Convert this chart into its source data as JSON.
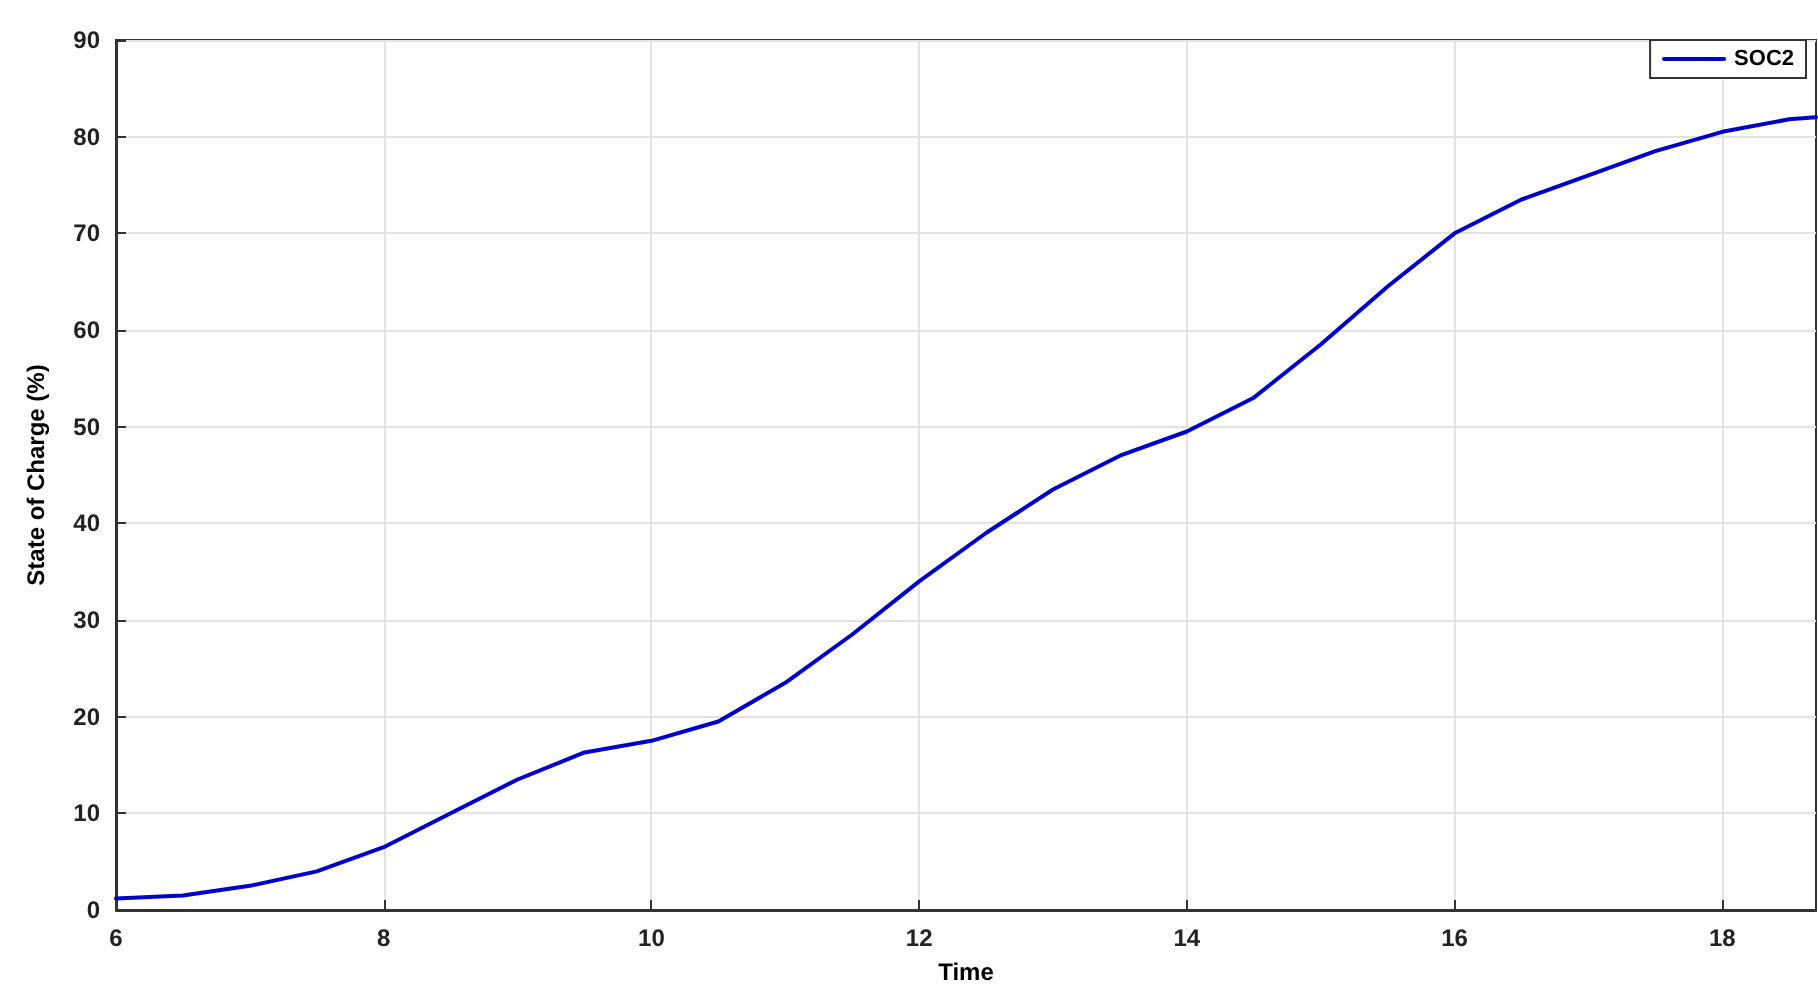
{
  "chart_data": {
    "type": "line",
    "xlabel": "Time",
    "ylabel": "State of Charge (%)",
    "x": [
      6,
      6.5,
      7,
      7.5,
      8,
      8.5,
      9,
      9.5,
      10,
      10.5,
      11,
      11.5,
      12,
      12.5,
      13,
      13.5,
      14,
      14.5,
      15,
      15.5,
      16,
      16.5,
      17,
      17.5,
      18,
      18.5,
      18.7
    ],
    "series": [
      {
        "name": "SOC2",
        "color": "#0000cc",
        "values": [
          1.2,
          1.5,
          2.5,
          4,
          6.5,
          10,
          13.5,
          16.3,
          17.5,
          19.5,
          23.5,
          28.5,
          34,
          39,
          43.5,
          47,
          49.5,
          53,
          58.5,
          64.5,
          70,
          73.5,
          76,
          78.5,
          80.5,
          81.8,
          82
        ]
      }
    ],
    "xlim": [
      6,
      18.7
    ],
    "xticks": [
      6,
      8,
      10,
      12,
      14,
      16,
      18
    ],
    "ylim": [
      0,
      90
    ],
    "yticks": [
      0,
      10,
      20,
      30,
      40,
      50,
      60,
      70,
      80,
      90
    ],
    "grid": true,
    "legend": "top right",
    "marker": "none",
    "line_style": "solid"
  }
}
